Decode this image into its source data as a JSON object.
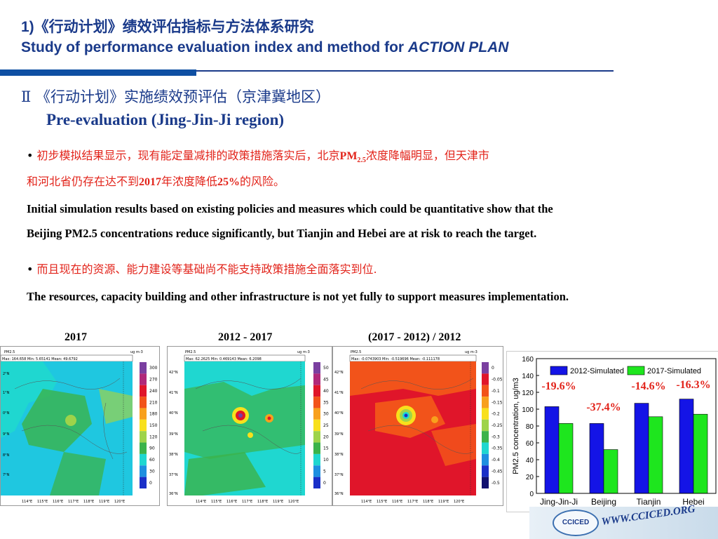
{
  "header": {
    "title_cn": "1)《行动计划》绩效评估指标与方法体系研究",
    "title_en_prefix": "Study of performance evaluation index and method for ",
    "title_en_emph": "ACTION PLAN"
  },
  "section": {
    "cn": "Ⅱ 《行动计划》实施绩效预评估（京津冀地区）",
    "en": "Pre-evaluation (Jing-Jin-Ji region)"
  },
  "bullets": {
    "b1_cn_a": "初步模拟结果显示，现有能定量减排的政策措施落实后，北京",
    "b1_cn_pm": "PM",
    "b1_cn_sub": "2.5",
    "b1_cn_b": "浓度降幅明显，但天津市",
    "b1_cn_line2a": "和河北省仍存在达不到",
    "b1_cn_year": "2017",
    "b1_cn_line2b": "年浓度降低",
    "b1_cn_pct": "25%",
    "b1_cn_line2c": "的风险。",
    "b1_en_1": "Initial simulation results based on existing policies and measures which could be quantitative show that the",
    "b1_en_2": "Beijing PM2.5 concentrations reduce significantly, but Tianjin and Hebei are at risk to reach the target.",
    "b2_cn": "而且现在的资源、能力建设等基础尚不能支持政策措施全面落实到位.",
    "b2_en": "The resources, capacity building and other infrastructure is not yet fully to support measures implementation."
  },
  "maps": [
    {
      "label": "2017",
      "stats": "Max: 164.658  Min: 5.65141  Mean: 49.6792",
      "var": "PM2.5",
      "unit": "ug m-3",
      "ticks": [
        "300",
        "270",
        "240",
        "210",
        "180",
        "150",
        "120",
        "90",
        "60",
        "30",
        "0"
      ],
      "colors": [
        "#7a3fa0",
        "#b0287a",
        "#e0152a",
        "#f2531a",
        "#f8a01d",
        "#f8e01c",
        "#9ed34a",
        "#3bb34a",
        "#1fd7d0",
        "#1e8fe0",
        "#1a2fc8"
      ]
    },
    {
      "label": "2012 - 2017",
      "stats": "Max: 62.2625  Min: 0.469143  Mean: 6.2098",
      "var": "PM2.5",
      "unit": "ug m-3",
      "ticks": [
        "50",
        "45",
        "40",
        "35",
        "30",
        "25",
        "20",
        "15",
        "10",
        "5",
        "0"
      ],
      "colors": [
        "#7a3fa0",
        "#b0287a",
        "#e0152a",
        "#f2531a",
        "#f8a01d",
        "#f8e01c",
        "#9ed34a",
        "#3bb34a",
        "#1fd7d0",
        "#1e8fe0",
        "#1a2fc8"
      ]
    },
    {
      "label": "(2017 - 2012) / 2012",
      "stats": "Max: -0.0743903  Min: -0.519696  Mean: -0.111178",
      "var": "PM2.5",
      "unit": "ug m-3",
      "ticks": [
        "0",
        "-0.05",
        "-0.1",
        "-0.15",
        "-0.2",
        "-0.25",
        "-0.3",
        "-0.35",
        "-0.4",
        "-0.45",
        "-0.5"
      ],
      "colors": [
        "#7a3fa0",
        "#e0152a",
        "#f2531a",
        "#f8a01d",
        "#f8e01c",
        "#9ed34a",
        "#3bb34a",
        "#1fd7d0",
        "#1e8fe0",
        "#1a2fc8",
        "#101070"
      ]
    }
  ],
  "map_axes": {
    "lon": [
      "114°E",
      "115°E",
      "116°E",
      "117°E",
      "118°E",
      "119°E",
      "120°E"
    ],
    "lat": [
      "42°N",
      "41°N",
      "40°N",
      "39°N",
      "38°N",
      "37°N",
      "36°N"
    ]
  },
  "chart_data": {
    "type": "bar",
    "categories": [
      "Jing-Jin-Ji",
      "Beijing",
      "Tianjin",
      "Hebei"
    ],
    "series": [
      {
        "name": "2012-Simulated",
        "values": [
          103,
          83,
          107,
          112
        ],
        "color": "#1414e6"
      },
      {
        "name": "2017-Simulated",
        "values": [
          83,
          52,
          91,
          94
        ],
        "color": "#1ee61e"
      }
    ],
    "annotations": [
      "-19.6%",
      "-37.4%",
      "-14.6%",
      "-16.3%"
    ],
    "annotation_color": "#e2231a",
    "ylabel": "PM2.5 concentration, ug/m3",
    "ylim": [
      0,
      160
    ],
    "yticks": [
      0,
      20,
      40,
      60,
      80,
      100,
      120,
      140,
      160
    ],
    "legend": "top"
  },
  "footer": {
    "logo": "CCICED",
    "url": "WWW.CCICED.ORG"
  }
}
